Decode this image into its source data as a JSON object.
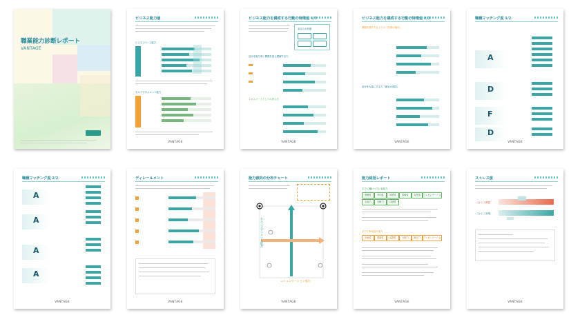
{
  "brand": "VANTAGE",
  "colors": {
    "accent": "#2a8a9a",
    "teal": "#3aa6a6",
    "orange": "#f3a23a",
    "green": "#5cb85c",
    "red": "#e0553a"
  },
  "cover": {
    "title": "職業能力診断レポート",
    "brand": "VANTAGE"
  },
  "pages": [
    {
      "title": "ビジネス能力値"
    },
    {
      "title": "ビジネス能力を構成する行動の特徴値 1/3"
    },
    {
      "title": "ビジネス能力を構成する行動の特徴値 2/3"
    },
    {
      "title": "職種マッチング度 1/2"
    },
    {
      "title": "職種マッチング度 2/2"
    },
    {
      "title": "ディレールメント"
    },
    {
      "title": "能力傾向の分布チャート"
    },
    {
      "title": "能力総括レポート"
    },
    {
      "title": "ストレス度"
    }
  ],
  "p1": {
    "section1": "ビジネスベース能力",
    "section2": "セルフマネジメント能力"
  },
  "p2": {
    "box": "あなたの判断",
    "s1": "自分を取り巻く問題を捉え理解する力",
    "s2": "エキスパートとしての考え方"
  },
  "p3": {
    "s1": "業務を遂行する上での「仕事の傾向」",
    "s2": "自分を大事にする力「最近の傾向」"
  },
  "p4": {
    "grades": [
      "A",
      "D",
      "F",
      "D"
    ]
  },
  "p5": {
    "grades": [
      "A",
      "A",
      "A",
      "A"
    ],
    "sections": [
      "職種・分野A",
      "職種・分野B",
      "職種・分野C",
      "職種・分野D"
    ]
  },
  "p7": {
    "yaxis": "セルフマネジメント能力",
    "xaxis": "コミュニケーション能力"
  },
  "p8": {
    "s1": "すでに備わっている能力",
    "s2": "すでに有効的な能力",
    "chips1": [
      "積極性",
      "外向性",
      "慎重性",
      "柔軟性",
      "責任感",
      "プレゼンテーション"
    ],
    "chips2": [
      "計画性",
      "柔軟性",
      "協調性",
      "行動力",
      "実行力",
      "プレゼンテーション"
    ],
    "chips3": [
      "企画力",
      "判断力",
      "持続性"
    ]
  },
  "p9": {
    "rows": [
      "ストレス耐性",
      "ストレス状態"
    ]
  }
}
